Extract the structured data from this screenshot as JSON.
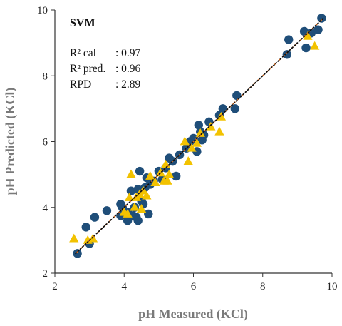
{
  "chart_data": {
    "type": "scatter",
    "title": "",
    "xlabel": "pH Measured (KCl)",
    "ylabel": "pH Predicted (KCl)",
    "xlim": [
      2,
      10
    ],
    "ylim": [
      2,
      10
    ],
    "xticks": [
      "2",
      "4",
      "6",
      "8",
      "10"
    ],
    "yticks": [
      "2",
      "4",
      "6",
      "8",
      "10"
    ],
    "grid": false,
    "annotations": {
      "model": "SVM",
      "stats": [
        {
          "label": "R² cal",
          "value": ": 0.97"
        },
        {
          "label": "R² pred.",
          "value": ": 0.96"
        },
        {
          "label": "RPD",
          "value": ": 2.89"
        }
      ]
    },
    "series": [
      {
        "marker": "circle",
        "color": "#1f4e79",
        "points": [
          [
            2.65,
            2.6
          ],
          [
            2.9,
            3.4
          ],
          [
            3.0,
            2.9
          ],
          [
            3.15,
            3.7
          ],
          [
            3.5,
            3.9
          ],
          [
            3.9,
            3.75
          ],
          [
            3.9,
            4.1
          ],
          [
            3.95,
            4.0
          ],
          [
            4.1,
            3.85
          ],
          [
            4.1,
            3.6
          ],
          [
            4.2,
            4.5
          ],
          [
            4.25,
            3.75
          ],
          [
            4.3,
            4.0
          ],
          [
            4.35,
            3.7
          ],
          [
            4.4,
            4.55
          ],
          [
            4.4,
            3.6
          ],
          [
            4.45,
            5.1
          ],
          [
            4.5,
            4.2
          ],
          [
            4.55,
            4.1
          ],
          [
            4.6,
            4.6
          ],
          [
            4.65,
            4.9
          ],
          [
            4.7,
            3.8
          ],
          [
            4.75,
            4.7
          ],
          [
            4.85,
            4.8
          ],
          [
            5.0,
            5.1
          ],
          [
            5.1,
            4.85
          ],
          [
            5.2,
            5.2
          ],
          [
            5.3,
            5.5
          ],
          [
            5.4,
            5.4
          ],
          [
            5.5,
            4.95
          ],
          [
            5.6,
            5.6
          ],
          [
            5.8,
            5.8
          ],
          [
            5.9,
            6.0
          ],
          [
            6.0,
            6.1
          ],
          [
            6.1,
            5.7
          ],
          [
            6.15,
            6.5
          ],
          [
            6.2,
            6.3
          ],
          [
            6.25,
            6.05
          ],
          [
            6.3,
            6.2
          ],
          [
            6.45,
            6.6
          ],
          [
            6.75,
            6.8
          ],
          [
            6.85,
            7.0
          ],
          [
            7.2,
            7.0
          ],
          [
            7.25,
            7.4
          ],
          [
            8.7,
            8.65
          ],
          [
            8.75,
            9.1
          ],
          [
            9.2,
            9.35
          ],
          [
            9.25,
            8.85
          ],
          [
            9.4,
            9.3
          ],
          [
            9.6,
            9.4
          ],
          [
            9.7,
            9.75
          ]
        ]
      },
      {
        "marker": "triangle",
        "color": "#f2c200",
        "points": [
          [
            2.55,
            3.05
          ],
          [
            2.95,
            3.0
          ],
          [
            3.1,
            3.05
          ],
          [
            4.0,
            3.85
          ],
          [
            4.1,
            3.8
          ],
          [
            4.15,
            4.3
          ],
          [
            4.2,
            5.0
          ],
          [
            4.3,
            4.0
          ],
          [
            4.35,
            4.3
          ],
          [
            4.45,
            4.4
          ],
          [
            4.5,
            3.95
          ],
          [
            4.55,
            4.5
          ],
          [
            4.65,
            4.35
          ],
          [
            4.75,
            4.95
          ],
          [
            4.9,
            4.75
          ],
          [
            5.05,
            5.05
          ],
          [
            5.15,
            4.8
          ],
          [
            5.2,
            5.3
          ],
          [
            5.25,
            4.8
          ],
          [
            5.3,
            5.0
          ],
          [
            5.75,
            6.0
          ],
          [
            5.85,
            5.4
          ],
          [
            5.95,
            5.8
          ],
          [
            6.1,
            5.95
          ],
          [
            6.2,
            6.25
          ],
          [
            6.5,
            6.45
          ],
          [
            6.75,
            6.3
          ],
          [
            6.8,
            6.75
          ],
          [
            9.3,
            9.2
          ],
          [
            9.5,
            8.9
          ]
        ]
      }
    ],
    "lines": [
      {
        "kind": "fit",
        "color": "#e07020",
        "style": "dashed",
        "from": [
          2.6,
          2.6
        ],
        "to": [
          9.75,
          9.75
        ]
      },
      {
        "kind": "reference",
        "color": "#111111",
        "style": "dotted",
        "from": [
          2.6,
          2.6
        ],
        "to": [
          9.75,
          9.75
        ]
      }
    ]
  }
}
